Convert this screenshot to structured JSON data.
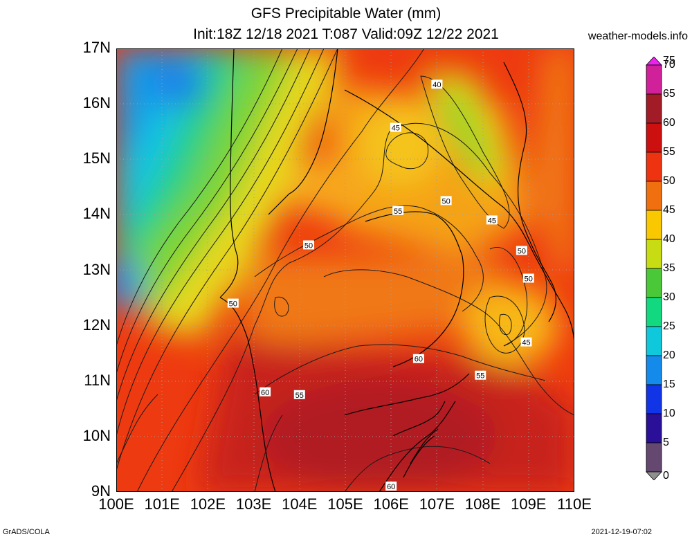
{
  "header": {
    "title_line1": "GFS Precipitable Water (mm)",
    "title_line2": "Init:18Z 12/18 2021 T:087 Valid:09Z 12/22 2021",
    "site": "weather-models.info"
  },
  "map": {
    "lat_labels": [
      "17N",
      "16N",
      "15N",
      "14N",
      "13N",
      "12N",
      "11N",
      "10N",
      "9N"
    ],
    "lon_labels": [
      "100E",
      "101E",
      "102E",
      "103E",
      "104E",
      "105E",
      "106E",
      "107E",
      "108E",
      "109E",
      "110E"
    ],
    "contour_labels": [
      {
        "text": "40",
        "lon": 107.0,
        "lat": 16.35
      },
      {
        "text": "45",
        "lon": 106.1,
        "lat": 15.57
      },
      {
        "text": "50",
        "lon": 107.2,
        "lat": 14.25
      },
      {
        "text": "55",
        "lon": 106.15,
        "lat": 14.07
      },
      {
        "text": "45",
        "lon": 108.2,
        "lat": 13.9
      },
      {
        "text": "50",
        "lon": 104.2,
        "lat": 13.45
      },
      {
        "text": "50",
        "lon": 108.85,
        "lat": 13.35
      },
      {
        "text": "50",
        "lon": 109.0,
        "lat": 12.85
      },
      {
        "text": "50",
        "lon": 102.55,
        "lat": 12.4
      },
      {
        "text": "45",
        "lon": 108.95,
        "lat": 11.7
      },
      {
        "text": "60",
        "lon": 106.6,
        "lat": 11.4
      },
      {
        "text": "55",
        "lon": 107.95,
        "lat": 11.1
      },
      {
        "text": "60",
        "lon": 103.25,
        "lat": 10.8
      },
      {
        "text": "55",
        "lon": 104.0,
        "lat": 10.75
      },
      {
        "text": "60",
        "lon": 106.0,
        "lat": 9.1
      }
    ]
  },
  "colorbar": {
    "labels": [
      "75",
      "70",
      "65",
      "60",
      "55",
      "50",
      "45",
      "40",
      "35",
      "30",
      "25",
      "20",
      "15",
      "10",
      "5",
      "0"
    ],
    "colors": [
      "#ee22ee",
      "#d0209a",
      "#a21c28",
      "#cc1010",
      "#ee3310",
      "#f07010",
      "#fac800",
      "#c8dc14",
      "#4ac838",
      "#12d880",
      "#10c8dc",
      "#148aea",
      "#1034e6",
      "#2a1098",
      "#644870",
      "#909090"
    ]
  },
  "footer": {
    "credit": "GrADS/COLA",
    "timestamp": "2021-12-19-07:02"
  }
}
